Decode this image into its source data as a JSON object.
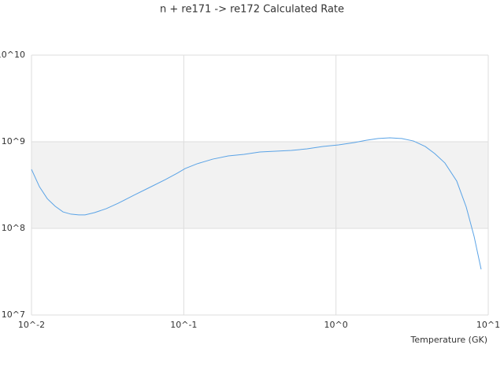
{
  "chart_data": {
    "type": "line",
    "title": "n + re171 -> re172 Calculated Rate",
    "x_label": "Temperature (GK)",
    "xlog": true,
    "ylog": true,
    "grid": true,
    "xlim": [
      0.01,
      10
    ],
    "ylim": [
      10000000,
      10000000000
    ],
    "xticks": [
      {
        "value": 0.01,
        "label": "10^-2"
      },
      {
        "value": 0.1,
        "label": "10^-1"
      },
      {
        "value": 1,
        "label": "10^0"
      },
      {
        "value": 10,
        "label": "10^1"
      }
    ],
    "yticks": [
      {
        "value": 10000000,
        "label": "10^7"
      },
      {
        "value": 100000000,
        "label": "10^8"
      },
      {
        "value": 1000000000,
        "label": "10^9"
      },
      {
        "value": 10000000000,
        "label": "10^10"
      }
    ],
    "x": [
      0.01,
      0.01127,
      0.0127,
      0.0143,
      0.0161,
      0.01814,
      0.02044,
      0.02247,
      0.02593,
      0.031,
      0.0371,
      0.047,
      0.0597,
      0.0757,
      0.0906,
      0.102,
      0.122,
      0.155,
      0.196,
      0.249,
      0.316,
      0.401,
      0.509,
      0.646,
      0.82,
      1.04,
      1.32,
      1.58,
      1.89,
      2.26,
      2.7,
      3.23,
      3.86,
      4.45,
      5.19,
      6.21,
      7.17,
      8.07,
      8.98
    ],
    "series": [
      {
        "color": "#5aa3e6",
        "values": [
          480000000,
          303000000,
          220000000,
          180000000,
          155000000,
          146000000,
          143000000,
          143000000,
          152000000,
          169000000,
          195000000,
          241000000,
          297000000,
          366000000,
          433000000,
          490000000,
          556000000,
          630000000,
          686000000,
          716000000,
          762000000,
          778000000,
          794000000,
          828000000,
          881000000,
          920000000,
          980000000,
          1040000000,
          1090000000,
          1110000000,
          1090000000,
          1020000000,
          881000000,
          731000000,
          569000000,
          351000000,
          176000000,
          81000000,
          33700000
        ]
      }
    ]
  }
}
